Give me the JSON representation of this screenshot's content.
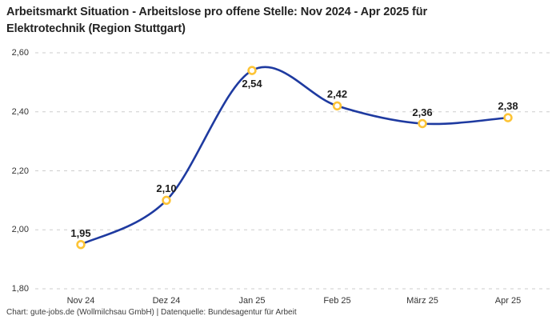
{
  "header": {
    "title_lines": [
      "Arbeitsmarkt Situation - Arbeitslose pro offene Stelle: Nov 2024 - Apr 2025 für",
      "Elektrotechnik (Region Stuttgart)"
    ]
  },
  "chart_data": {
    "type": "line",
    "title": "Arbeitsmarkt Situation - Arbeitslose pro offene Stelle: Nov 2024 - Apr 2025 für Elektrotechnik (Region Stuttgart)",
    "categories": [
      "Nov 24",
      "Dez 24",
      "Jan 25",
      "Feb 25",
      "März 25",
      "Apr 25"
    ],
    "values": [
      1.95,
      2.1,
      2.54,
      2.42,
      2.36,
      2.38
    ],
    "value_labels": [
      "1,95",
      "2,10",
      "2,54",
      "2,42",
      "2,36",
      "2,38"
    ],
    "value_label_positions": [
      "above",
      "above",
      "below",
      "above",
      "above",
      "above"
    ],
    "ylim": [
      1.8,
      2.6
    ],
    "ytick_values": [
      2.6,
      2.4,
      2.2,
      2.0,
      1.8
    ],
    "ytick_labels": [
      "2,60",
      "2,40",
      "2,20",
      "2,00",
      "1,80"
    ],
    "xlabel": "",
    "ylabel": "",
    "legend": "none",
    "grid": "horizontal-dashed",
    "line_style": "smooth-spline",
    "colors": {
      "line": "#1e3aa0",
      "marker_ring": "#fdc436",
      "marker_fill": "#ffffff",
      "gridline": "#cdcdcd",
      "title_text": "#232323",
      "tick_text": "#333333",
      "footer_text": "#3c3c3c",
      "background": "#ffffff"
    }
  },
  "footer": {
    "text": "Chart: gute-jobs.de (Wollmilchsau GmbH) | Datenquelle: Bundesagentur für Arbeit"
  }
}
